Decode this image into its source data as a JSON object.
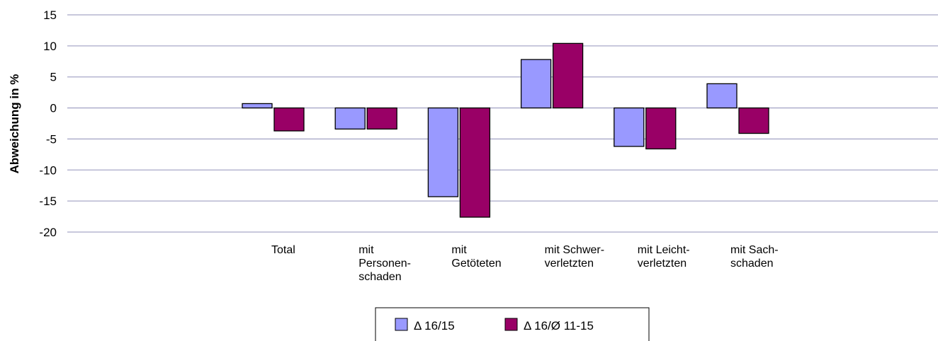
{
  "chart_data": {
    "type": "bar",
    "y_label": "Abweichung in %",
    "categories": [
      [
        "Total"
      ],
      [
        "mit",
        "Personen-",
        "schaden"
      ],
      [
        "mit",
        "Getöteten"
      ],
      [
        "mit Schwer-",
        "verletzten"
      ],
      [
        "mit Leicht-",
        "verletzten"
      ],
      [
        "mit Sach-",
        "schaden"
      ]
    ],
    "series": [
      {
        "name": "Δ 16/15",
        "color": "#9999ff",
        "values": [
          0.7,
          -3.4,
          -14.3,
          7.8,
          -6.2,
          3.9
        ]
      },
      {
        "name": "Δ 16/Ø 11-15",
        "color": "#990066",
        "values": [
          -3.7,
          -3.4,
          -17.6,
          10.4,
          -6.6,
          -4.1
        ]
      }
    ],
    "ylim": [
      -20,
      15
    ],
    "yticks": [
      -20,
      -15,
      -10,
      -5,
      0,
      5,
      10,
      15
    ],
    "grid": true
  }
}
